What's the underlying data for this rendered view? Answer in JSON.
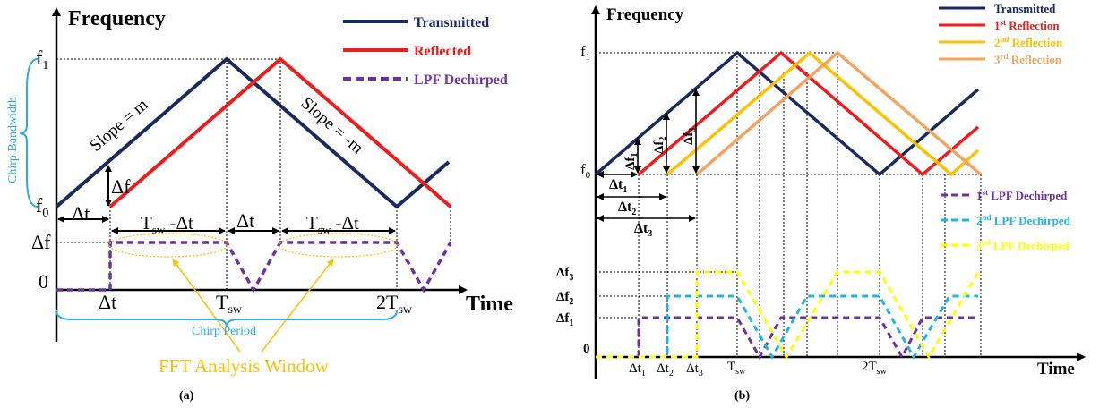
{
  "colors": {
    "transmitted": "#1b2a5e",
    "reflected": "#ee1c1c",
    "lpf": "#7030a0",
    "second_reflection": "#ffc000",
    "third_reflection": "#f4a460",
    "lpf2": "#1fb4e8",
    "lpf3": "#ffff00",
    "bandwidth": "#29abe2",
    "fft": "#ffc000"
  },
  "panel_a": {
    "y_axis_label": "Frequency",
    "x_axis_label": "Time",
    "f1": "f",
    "f1_sub": "1",
    "f0": "f",
    "f0_sub": "0",
    "delta_f": "Δf",
    "zero": "0",
    "chirp_bandwidth": "Chirp Bandwidth",
    "slope_up": "Slope = m",
    "slope_down": "Slope = -m",
    "dt": "Δt",
    "tsw_minus_dt_1": "T",
    "tsw_sub": "sw",
    "minus_dt": " -Δt",
    "x_tick_dt": "Δt",
    "x_tick_tsw": "T",
    "x_tick_2tsw": "2T",
    "chirp_period": "Chirp Period",
    "fft_window": "FFT Analysis Window",
    "legend": [
      "Transmitted",
      "Reflected",
      "LPF Dechirped"
    ],
    "caption": "(a)"
  },
  "panel_b": {
    "y_axis_label": "Frequency",
    "x_axis_label": "Time",
    "f1": "f",
    "f1_sub": "1",
    "f0": "f",
    "f0_sub": "0",
    "df1": "Δf",
    "df2": "Δf",
    "df3": "Δf",
    "sub1": "1",
    "sub2": "2",
    "sub3": "3",
    "dt": "Δt",
    "zero": "0",
    "x_tick_tsw": "T",
    "x_tick_2tsw": "2T",
    "tsw_sub": "sw",
    "legend_top": [
      {
        "pre": "",
        "sup": "",
        "post": "Transmitted"
      },
      {
        "pre": "1",
        "sup": "st",
        "post": " Reflection"
      },
      {
        "pre": "2",
        "sup": "nd",
        "post": " Reflection"
      },
      {
        "pre": "3",
        "sup": "rd",
        "post": " Reflection"
      }
    ],
    "legend_bottom": [
      {
        "pre": "1",
        "sup": "st",
        "post": " LPF Dechirped"
      },
      {
        "pre": "2",
        "sup": "nd",
        "post": " LPF Dechirped"
      },
      {
        "pre": "3",
        "sup": "rd",
        "post": " LPF Dechirped"
      }
    ],
    "caption": "(b)"
  }
}
